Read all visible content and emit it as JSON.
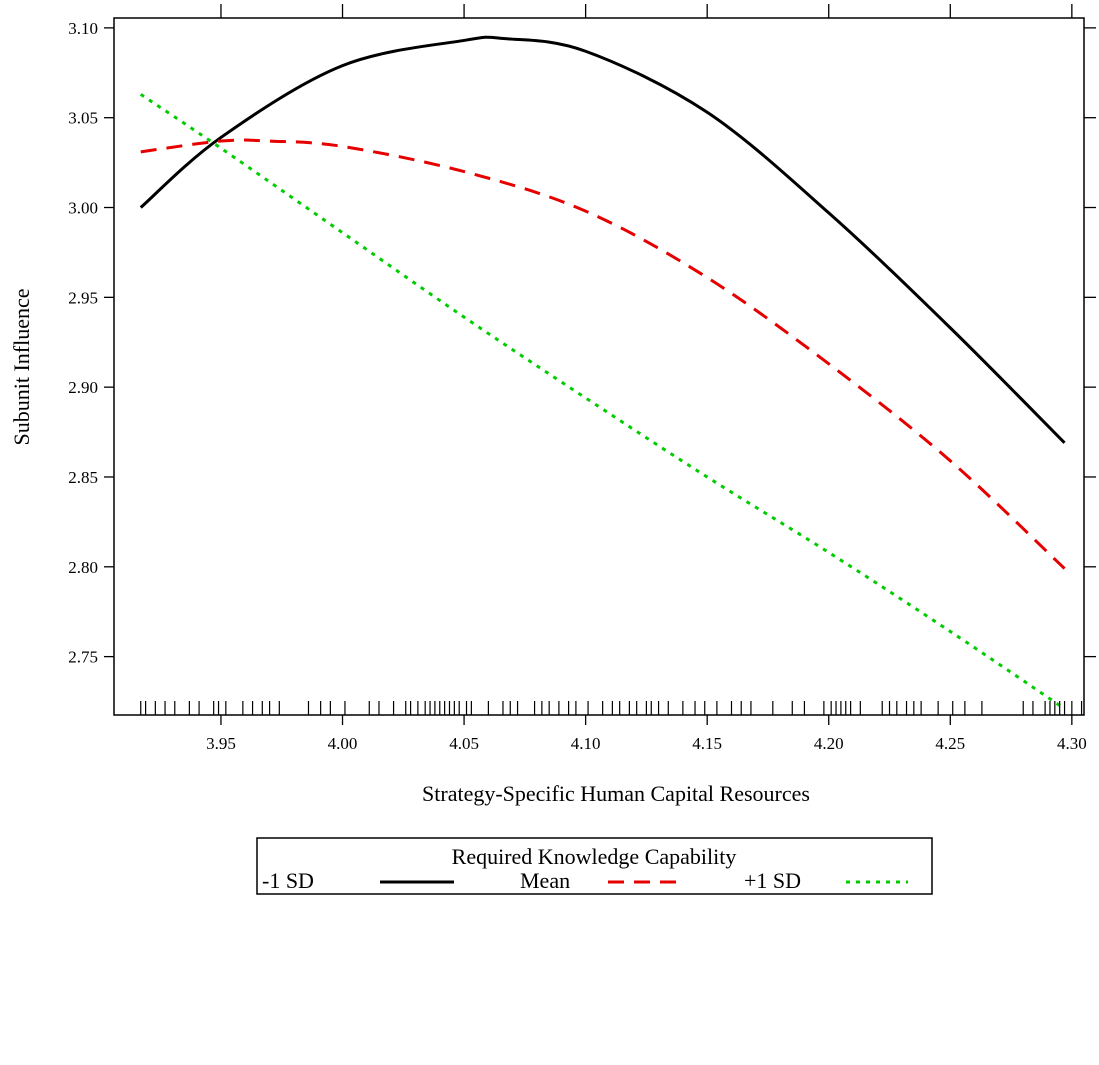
{
  "chart_data": {
    "type": "line",
    "title": "",
    "xlabel": "Strategy-Specific Human Capital Resources",
    "ylabel": "Subunit Influence",
    "xlim": [
      3.906,
      4.305
    ],
    "ylim": [
      2.7175,
      3.1055
    ],
    "x_ticks": [
      "3.95",
      "4.00",
      "4.05",
      "4.10",
      "4.15",
      "4.20",
      "4.25",
      "4.30"
    ],
    "y_ticks": [
      "2.75",
      "2.80",
      "2.85",
      "2.90",
      "2.95",
      "3.00",
      "3.05",
      "3.10"
    ],
    "grid": false,
    "legend": {
      "title": "Required Knowledge Capability",
      "placement": "bottom"
    },
    "series": [
      {
        "name": "-1 SD",
        "color": "#000000",
        "style": "solid",
        "x": [
          3.917,
          3.95,
          4.0,
          4.05,
          4.067,
          4.1,
          4.15,
          4.2,
          4.25,
          4.297
        ],
        "y": [
          3.0,
          3.039,
          3.079,
          3.093,
          3.094,
          3.087,
          3.053,
          2.997,
          2.933,
          2.869
        ]
      },
      {
        "name": "Mean",
        "color": "#e60000",
        "style": "dashed",
        "x": [
          3.917,
          3.95,
          3.97,
          4.0,
          4.05,
          4.1,
          4.15,
          4.2,
          4.25,
          4.297
        ],
        "y": [
          3.031,
          3.037,
          3.037,
          3.034,
          3.02,
          2.998,
          2.961,
          2.913,
          2.859,
          2.799
        ]
      },
      {
        "name": "+1 SD",
        "color": "#00cc00",
        "style": "dotted",
        "x": [
          3.917,
          3.95,
          4.0,
          4.05,
          4.1,
          4.15,
          4.2,
          4.25,
          4.297
        ],
        "y": [
          3.063,
          3.033,
          2.986,
          2.939,
          2.894,
          2.85,
          2.808,
          2.764,
          2.721
        ]
      }
    ],
    "rug_x": [
      3.917,
      3.919,
      3.923,
      3.927,
      3.931,
      3.937,
      3.941,
      3.947,
      3.949,
      3.952,
      3.959,
      3.963,
      3.967,
      3.97,
      3.974,
      3.986,
      3.991,
      3.995,
      4.001,
      4.011,
      4.015,
      4.021,
      4.026,
      4.028,
      4.031,
      4.034,
      4.036,
      4.038,
      4.04,
      4.042,
      4.044,
      4.046,
      4.048,
      4.051,
      4.053,
      4.06,
      4.066,
      4.069,
      4.072,
      4.079,
      4.082,
      4.085,
      4.089,
      4.093,
      4.096,
      4.101,
      4.107,
      4.111,
      4.114,
      4.118,
      4.121,
      4.125,
      4.127,
      4.13,
      4.134,
      4.14,
      4.145,
      4.149,
      4.154,
      4.16,
      4.164,
      4.168,
      4.177,
      4.185,
      4.19,
      4.198,
      4.201,
      4.203,
      4.205,
      4.207,
      4.209,
      4.213,
      4.222,
      4.225,
      4.228,
      4.232,
      4.235,
      4.238,
      4.245,
      4.251,
      4.256,
      4.263,
      4.28,
      4.284,
      4.289,
      4.291,
      4.293,
      4.295,
      4.297,
      4.3,
      4.304
    ]
  }
}
